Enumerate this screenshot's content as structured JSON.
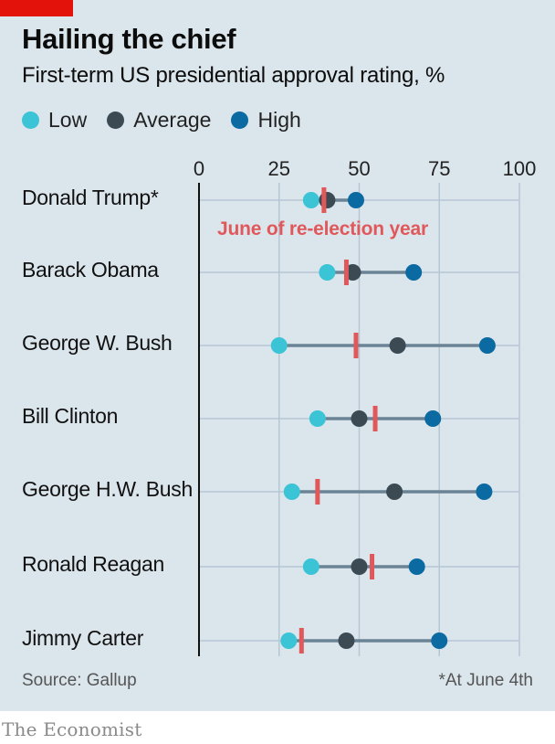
{
  "header": {
    "title": "Hailing the chief",
    "subtitle": "First-term US presidential approval rating, %"
  },
  "legend": {
    "low": "Low",
    "average": "Average",
    "high": "High"
  },
  "annotation": "June of re-election year",
  "source": "Source: Gallup",
  "footnote": "*At June 4th",
  "brand": "The Economist",
  "colors": {
    "panel": "#dbe5ec",
    "low": "#3ac4d6",
    "average": "#3c4a54",
    "high": "#0a6aa1",
    "june": "#e0585a",
    "range_line": "#6b8394",
    "grid": "#b6c7d3",
    "brand_red": "#e3120b"
  },
  "chart_data": {
    "type": "dot-range",
    "title": "Hailing the chief",
    "subtitle": "First-term US presidential approval rating, %",
    "xlim": [
      0,
      100
    ],
    "x_ticks": [
      "0",
      "25",
      "50",
      "75",
      "100"
    ],
    "series_keys": [
      "low",
      "average",
      "high",
      "june"
    ],
    "rows": [
      {
        "name": "Donald Trump*",
        "low": 35,
        "average": 40,
        "high": 49,
        "june": 39
      },
      {
        "name": "Barack Obama",
        "low": 40,
        "average": 48,
        "high": 67,
        "june": 46
      },
      {
        "name": "George W. Bush",
        "low": 25,
        "average": 62,
        "high": 90,
        "june": 49
      },
      {
        "name": "Bill Clinton",
        "low": 37,
        "average": 50,
        "high": 73,
        "june": 55
      },
      {
        "name": "George H.W. Bush",
        "low": 29,
        "average": 61,
        "high": 89,
        "june": 37
      },
      {
        "name": "Ronald Reagan",
        "low": 35,
        "average": 50,
        "high": 68,
        "june": 54
      },
      {
        "name": "Jimmy Carter",
        "low": 28,
        "average": 46,
        "high": 75,
        "june": 32
      }
    ]
  }
}
